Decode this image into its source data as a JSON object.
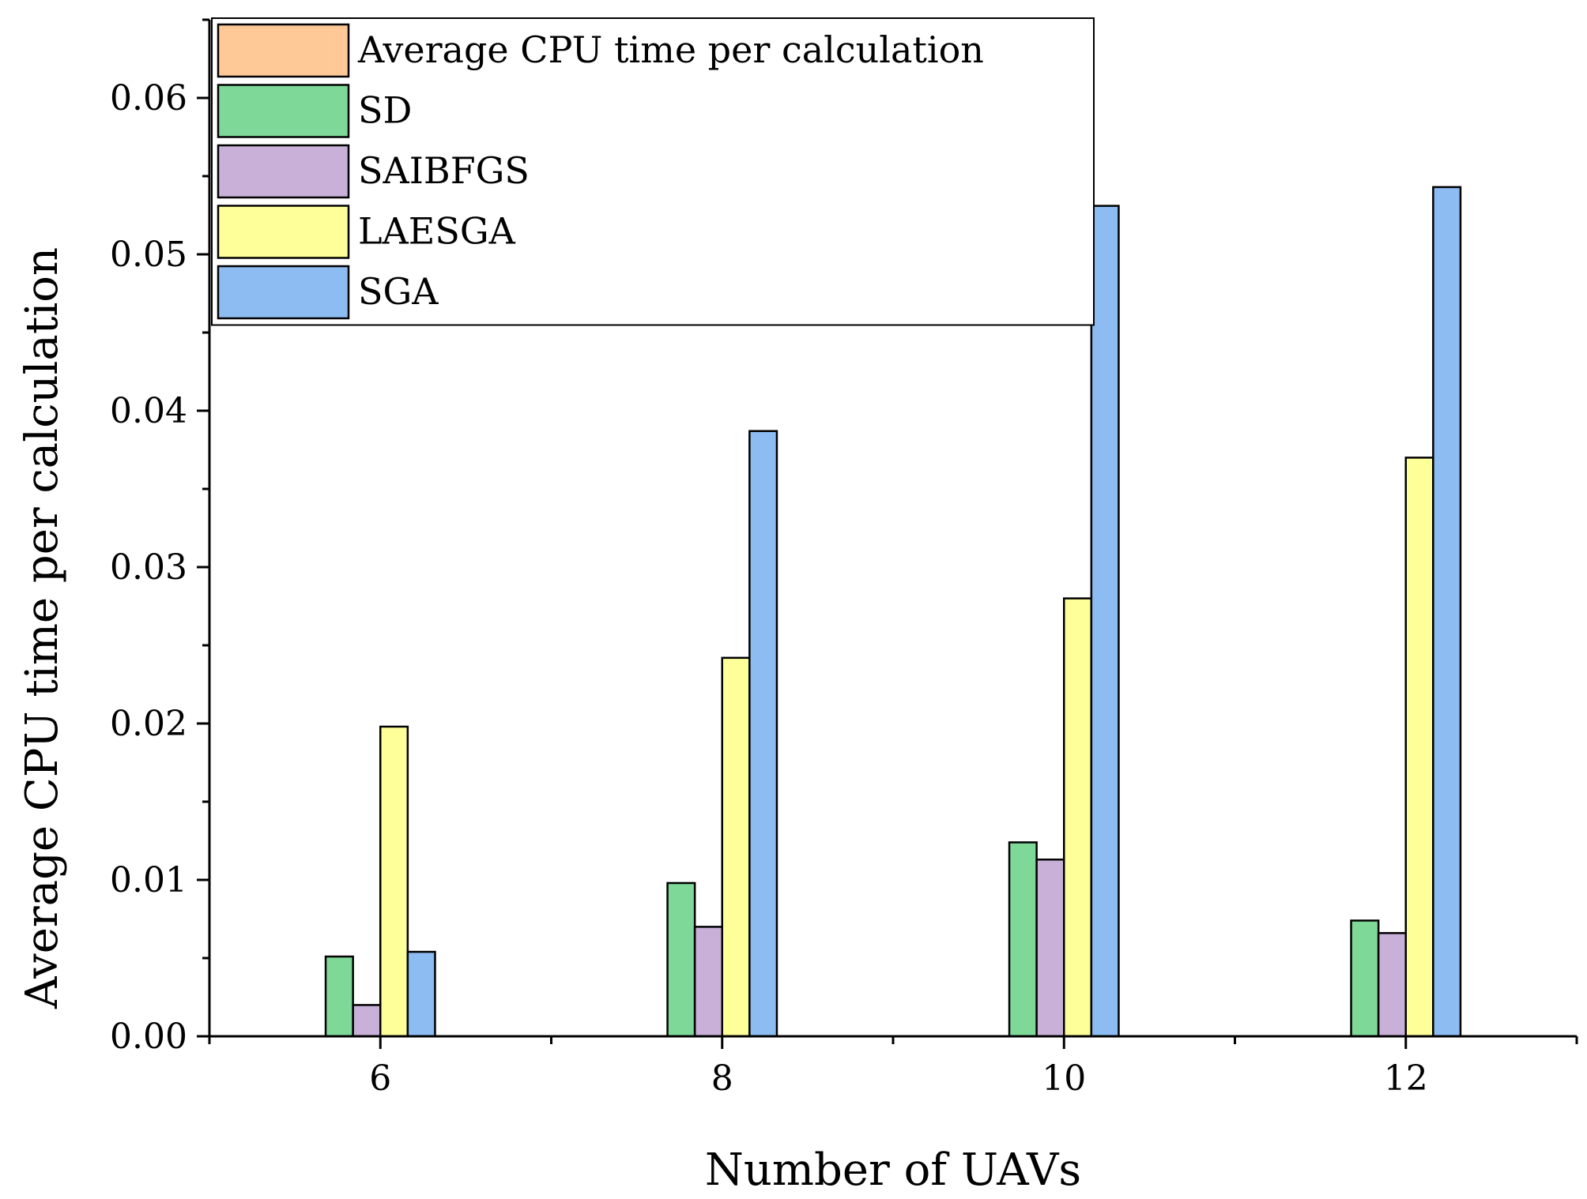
{
  "chart_data": {
    "type": "bar",
    "title": "",
    "xlabel": "Number of UAVs",
    "ylabel": "Average CPU time per calculation",
    "categories": [
      "6",
      "8",
      "10",
      "12"
    ],
    "ylim": [
      0,
      0.065
    ],
    "yticks": [
      "0.00",
      "0.01",
      "0.02",
      "0.03",
      "0.04",
      "0.05",
      "0.06"
    ],
    "ytick_values": [
      0,
      0.01,
      0.02,
      0.03,
      0.04,
      0.05,
      0.06
    ],
    "legend_position": "top-left",
    "legend_title_entry": {
      "label": "Average CPU time per calculation",
      "color": "#FFC896"
    },
    "series": [
      {
        "name": "SD",
        "color": "#7ED898",
        "values": [
          0.0051,
          0.0098,
          0.0124,
          0.0074
        ]
      },
      {
        "name": "SAIBFGS",
        "color": "#C8B0D8",
        "values": [
          0.002,
          0.007,
          0.0113,
          0.0066
        ]
      },
      {
        "name": "LAESGA",
        "color": "#FFFF99",
        "values": [
          0.0198,
          0.0242,
          0.028,
          0.037
        ]
      },
      {
        "name": "SGA",
        "color": "#8DBCF2",
        "values": [
          0.0054,
          0.0387,
          0.0531,
          0.0543
        ]
      }
    ]
  }
}
